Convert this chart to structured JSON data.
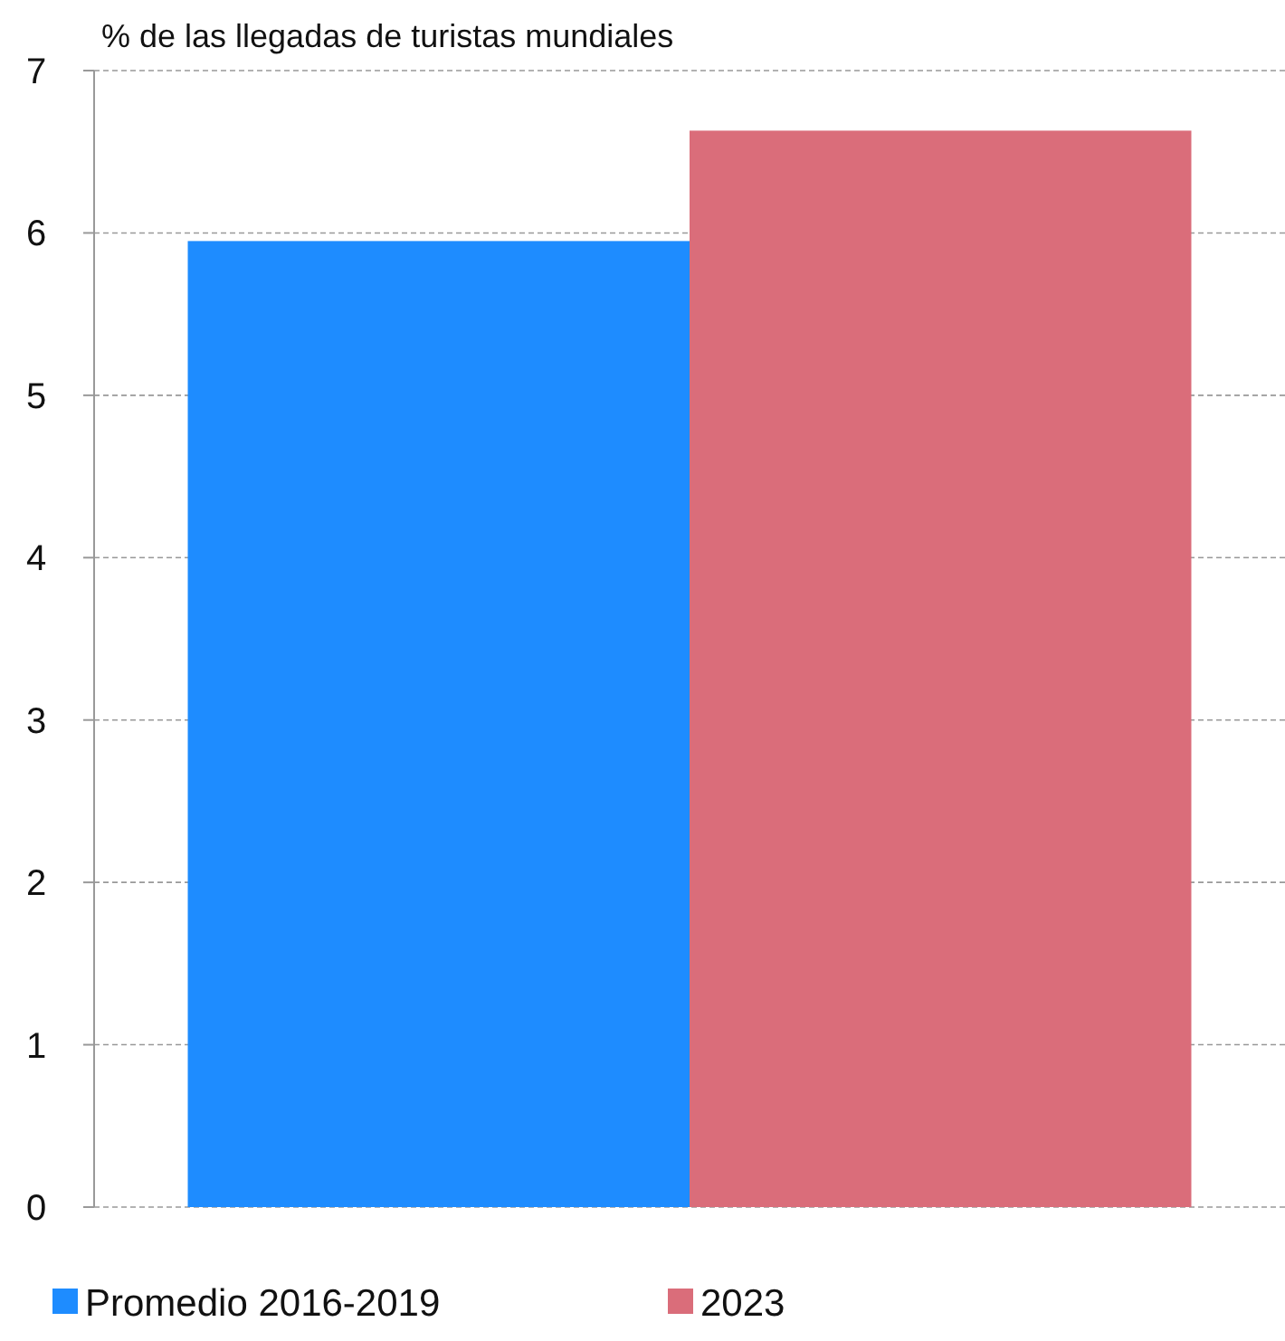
{
  "chart_data": {
    "type": "bar",
    "ylabel": "% de las llegadas de turistas mundiales",
    "categories": [
      null
    ],
    "series": [
      {
        "name": "Promedio 2016-2019",
        "color": "#1e8cff",
        "values": [
          5.95
        ]
      },
      {
        "name": "2023",
        "color": "#da6d7a",
        "values": [
          6.63
        ]
      }
    ],
    "ylim": [
      0,
      7
    ],
    "yticks": [
      0,
      1,
      2,
      3,
      4,
      5,
      6,
      7
    ],
    "grid": "y",
    "legend": "bottom"
  }
}
